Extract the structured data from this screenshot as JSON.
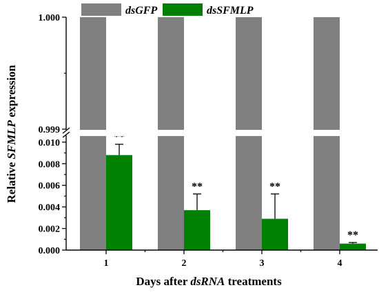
{
  "chart_data": {
    "type": "bar",
    "categories": [
      "1",
      "2",
      "3",
      "4"
    ],
    "series": [
      {
        "name": "dsGFP",
        "color": "#808080",
        "values": [
          1.0,
          1.0,
          1.0,
          1.0
        ],
        "errors": [
          0,
          0,
          0,
          0
        ],
        "labels": [
          "",
          "",
          "",
          ""
        ]
      },
      {
        "name": "dsSFMLP",
        "color": "#008000",
        "values": [
          0.0088,
          0.0037,
          0.0029,
          0.0006
        ],
        "errors": [
          0.001,
          0.0015,
          0.0023,
          0.0001
        ],
        "labels": [
          "**",
          "**",
          "**",
          "**"
        ]
      }
    ],
    "x_title": {
      "plain": "Days after ",
      "italic": "dsRNA",
      "suffix": " treatments"
    },
    "y_title": {
      "plain": "Relative ",
      "italic": "SFMLP",
      "suffix": " expression"
    },
    "y_axis": {
      "broken": true,
      "lower_range": [
        0.0,
        0.0105
      ],
      "lower_ticks": [
        "0.000",
        "0.002",
        "0.004",
        "0.006",
        "0.008",
        "0.010"
      ],
      "upper_range": [
        0.999,
        1.0
      ],
      "upper_ticks": [
        "0.999",
        "1.000"
      ]
    },
    "legend": {
      "position": "top",
      "entries": [
        "dsGFP",
        "dsSFMLP"
      ]
    },
    "grid": false
  }
}
